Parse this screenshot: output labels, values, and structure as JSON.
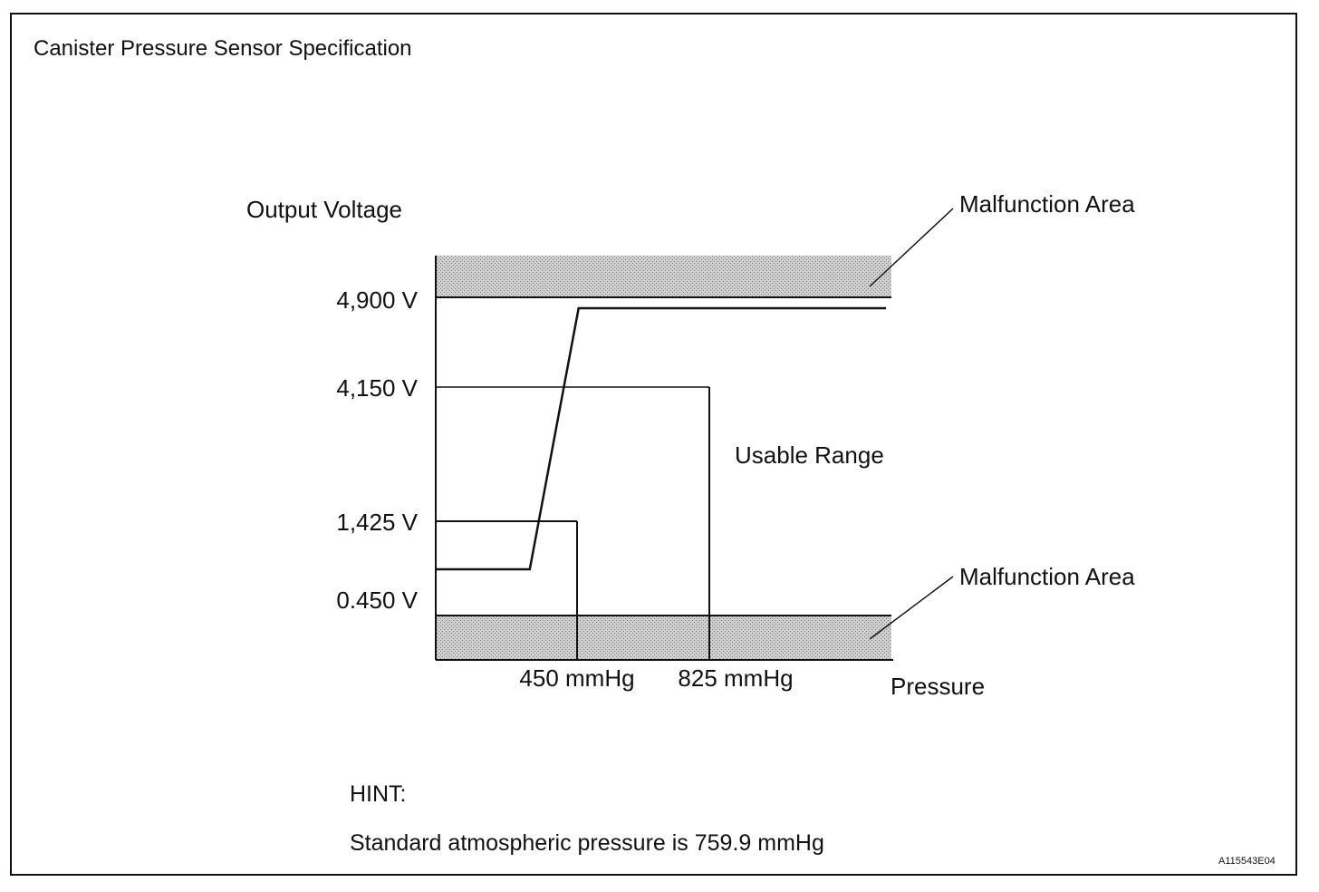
{
  "title": "Canister Pressure Sensor Specification",
  "hint": {
    "heading": "HINT:",
    "text": "Standard atmospheric pressure is 759.9 mmHg"
  },
  "figure_id": "A115543E04",
  "chart_data": {
    "type": "line",
    "ylabel": "Output Voltage",
    "xlabel": "Pressure",
    "y_tick_labels": [
      "4,900 V",
      "4,150 V",
      "1,425 V",
      "0.450 V"
    ],
    "y_ticks": [
      4.9,
      4.15,
      1.425,
      0.45
    ],
    "x_tick_labels": [
      "450 mmHg",
      "825 mmHg"
    ],
    "x_ticks": [
      450,
      825
    ],
    "region_labels": {
      "usable": "Usable Range",
      "malfunction_upper": "Malfunction Area",
      "malfunction_lower": "Malfunction Area"
    },
    "series": [
      {
        "x": [
          450,
          825
        ],
        "y": [
          1.425,
          4.15
        ]
      }
    ],
    "colors": {
      "line": "#111111",
      "hatch": "#b8b8b8"
    }
  }
}
